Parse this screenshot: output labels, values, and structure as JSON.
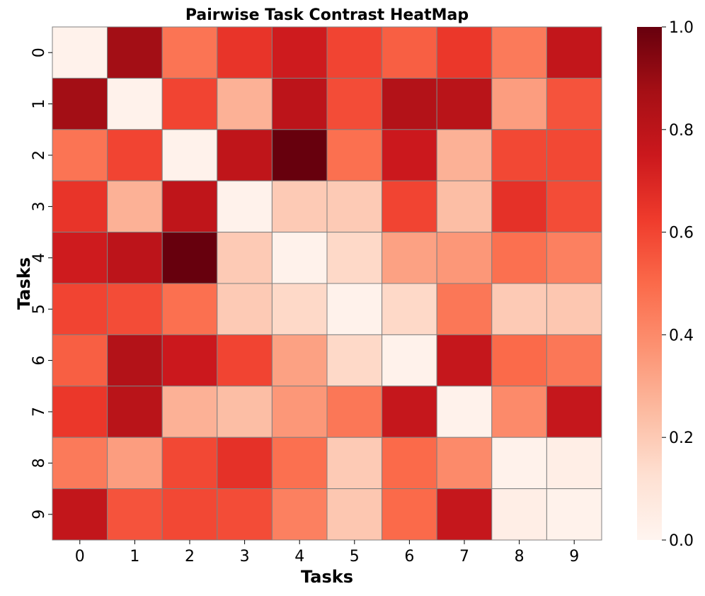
{
  "chart_data": {
    "type": "heatmap",
    "title": "Pairwise Task Contrast HeatMap",
    "xlabel": "Tasks",
    "ylabel": "Tasks",
    "x_categories": [
      "0",
      "1",
      "2",
      "3",
      "4",
      "5",
      "6",
      "7",
      "8",
      "9"
    ],
    "y_categories": [
      "0",
      "1",
      "2",
      "3",
      "4",
      "5",
      "6",
      "7",
      "8",
      "9"
    ],
    "values": [
      [
        0.02,
        0.88,
        0.47,
        0.65,
        0.74,
        0.6,
        0.53,
        0.64,
        0.45,
        0.78
      ],
      [
        0.88,
        0.02,
        0.6,
        0.28,
        0.8,
        0.58,
        0.83,
        0.81,
        0.34,
        0.56
      ],
      [
        0.47,
        0.6,
        0.02,
        0.79,
        1.0,
        0.48,
        0.75,
        0.28,
        0.59,
        0.59
      ],
      [
        0.65,
        0.28,
        0.79,
        0.02,
        0.2,
        0.2,
        0.6,
        0.24,
        0.66,
        0.58
      ],
      [
        0.74,
        0.8,
        1.0,
        0.2,
        0.02,
        0.15,
        0.33,
        0.36,
        0.48,
        0.43
      ],
      [
        0.6,
        0.58,
        0.48,
        0.2,
        0.15,
        0.02,
        0.15,
        0.46,
        0.2,
        0.21
      ],
      [
        0.53,
        0.83,
        0.75,
        0.6,
        0.33,
        0.15,
        0.02,
        0.77,
        0.5,
        0.46
      ],
      [
        0.64,
        0.81,
        0.28,
        0.24,
        0.36,
        0.46,
        0.77,
        0.02,
        0.4,
        0.77
      ],
      [
        0.45,
        0.34,
        0.59,
        0.66,
        0.48,
        0.2,
        0.5,
        0.4,
        0.02,
        0.04
      ],
      [
        0.78,
        0.56,
        0.59,
        0.58,
        0.43,
        0.21,
        0.5,
        0.77,
        0.04,
        0.02
      ]
    ],
    "vmin": 0.0,
    "vmax": 1.0,
    "colormap": "Reds",
    "colormap_stops": [
      "#fff5f0",
      "#fee0d2",
      "#fcbba1",
      "#fc9272",
      "#fb6a4a",
      "#ef3b2c",
      "#cb181d",
      "#a50f15",
      "#67000d"
    ],
    "cell_border_color": "#808080",
    "colorbar_ticks": [
      "0.0",
      "0.2",
      "0.4",
      "0.6",
      "0.8",
      "1.0"
    ],
    "grid": false
  }
}
